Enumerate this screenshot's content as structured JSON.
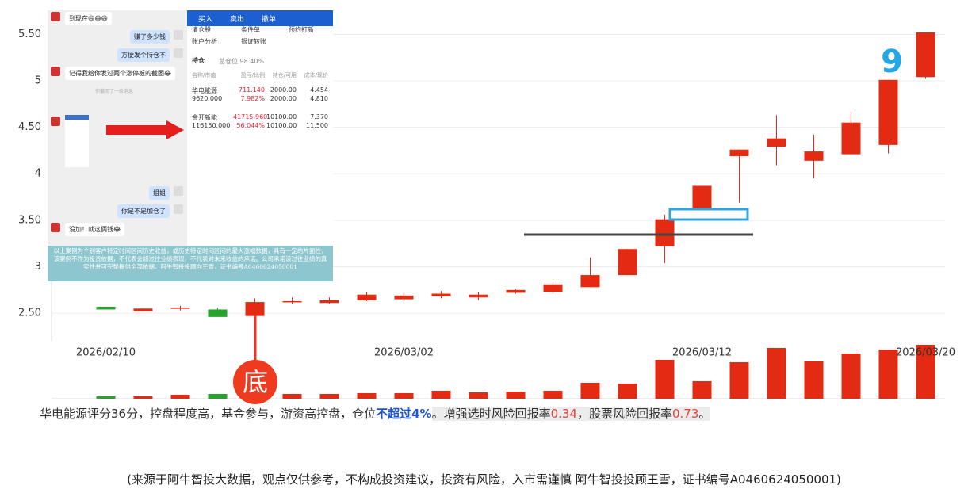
{
  "chart_data": {
    "type": "candlestick",
    "categories": [
      "2026/02/10",
      null,
      null,
      null,
      null,
      null,
      null,
      null,
      "2026/03/02",
      null,
      null,
      null,
      null,
      null,
      null,
      null,
      "2026/03/12",
      null,
      null,
      null,
      null,
      null,
      "2026/03/20"
    ],
    "open": [
      2.57,
      2.52,
      2.56,
      2.54,
      2.47,
      2.62,
      2.61,
      2.64,
      2.65,
      2.68,
      2.67,
      2.72,
      2.73,
      2.78,
      2.91,
      3.22,
      3.63,
      4.19,
      4.29,
      4.14,
      4.21,
      4.31,
      5.04
    ],
    "high": [
      2.57,
      2.55,
      2.58,
      2.56,
      2.66,
      2.67,
      2.67,
      2.73,
      2.72,
      2.74,
      2.73,
      2.76,
      2.83,
      3.1,
      3.19,
      3.56,
      3.87,
      4.26,
      4.63,
      4.42,
      4.67,
      5.01,
      5.52
    ],
    "low": [
      2.54,
      2.52,
      2.53,
      2.46,
      2.46,
      2.6,
      2.6,
      2.63,
      2.63,
      2.66,
      2.64,
      2.71,
      2.71,
      2.78,
      2.91,
      3.04,
      3.62,
      3.69,
      4.09,
      3.95,
      4.21,
      4.22,
      5.02
    ],
    "close": [
      2.54,
      2.55,
      2.56,
      2.46,
      2.62,
      2.63,
      2.64,
      2.7,
      2.69,
      2.71,
      2.7,
      2.75,
      2.81,
      2.91,
      3.19,
      3.51,
      3.87,
      4.26,
      4.38,
      4.24,
      4.55,
      5.01,
      5.52
    ],
    "volume": [
      3,
      3,
      5,
      6,
      6,
      6,
      6,
      7,
      7,
      10,
      8,
      9,
      10,
      20,
      19,
      49,
      22,
      46,
      64,
      47,
      57,
      62,
      68
    ],
    "up_color": "#e32a12",
    "down_color": "#27a22c",
    "ylim": [
      2.22,
      5.75
    ],
    "yticks": [
      {
        "value": 2.5,
        "label": "2.50"
      },
      3,
      {
        "value": 3.5,
        "label": "3.50"
      },
      4,
      {
        "value": 4.5,
        "label": "4.50"
      },
      5,
      {
        "value": 5.5,
        "label": "5.50"
      }
    ],
    "grid": true,
    "annotations": {
      "count": "9",
      "bottom": "底"
    }
  },
  "chat": {
    "messages": [
      "到现在😄😄😄",
      "赚了多少钱",
      "方便发个持仓不",
      "记得我给你发过两个涨停板的截图😂",
      "你撤回了一条消息",
      "姐姐",
      "你是不是加仓了",
      "没加！就这俩钱😂"
    ]
  },
  "trade_panel": {
    "tabs": [
      "买入",
      "卖出",
      "撤单"
    ],
    "menu": [
      "清仓股",
      "条件单",
      "预约打新",
      "账户分析",
      "银证转账"
    ],
    "holding": "持仓",
    "position": "总仓位 98.40%",
    "headers": [
      "名称/市值",
      "盈亏/比例",
      "持仓/可用",
      "成本/现价"
    ],
    "rows": [
      [
        "华电能源",
        "711.140",
        "2000.00",
        "4.454"
      ],
      [
        "9620.000",
        "7.982%",
        "2000.00",
        "4.810"
      ],
      [
        "金开新能",
        "41715.960",
        "10100.00",
        "7.370"
      ],
      [
        "116150.000",
        "56.044%",
        "10100.00",
        "11.500"
      ]
    ]
  },
  "disclaimer": "以上案例为个别客户特定时间区间历史收益，或历史特定时间区间的最大涨幅数据，具有一定的片面性，该案例不作为投资依据，不代表会超过往业绩表现，不代表对未来收益的承诺。公司承诺该过往业绩的真实性并可完整提供全部依据。阿牛智投投顾向王雪，证书编号A0460624050001",
  "summary": [
    "华电能源评分36分，控盘程度高，基金参与，游资高控盘，仓位",
    "不超过4%",
    "。增强选时风险回报率",
    "0.34",
    "，股票风险回报率",
    "0.73",
    "。"
  ],
  "footer": "(来源于阿牛智投大数据，观点仅供参考，不构成投资建议，投资有风险，入市需谨慎 阿牛智投投顾王雪，证书编号A0460624050001)"
}
